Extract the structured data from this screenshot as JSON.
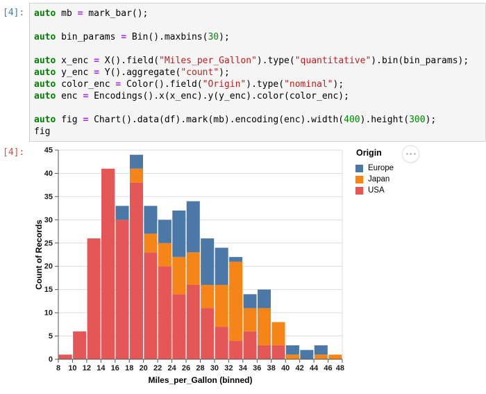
{
  "notebook": {
    "input_prompt": "[4]:",
    "output_prompt": "[4]:",
    "code_lines": [
      [
        {
          "t": "kw",
          "s": "auto"
        },
        {
          "t": "plain",
          "s": " mb "
        },
        {
          "t": "op",
          "s": "="
        },
        {
          "t": "plain",
          "s": " mark_bar();"
        }
      ],
      [],
      [
        {
          "t": "kw",
          "s": "auto"
        },
        {
          "t": "plain",
          "s": " bin_params "
        },
        {
          "t": "op",
          "s": "="
        },
        {
          "t": "plain",
          "s": " Bin().maxbins("
        },
        {
          "t": "num",
          "s": "30"
        },
        {
          "t": "plain",
          "s": ");"
        }
      ],
      [],
      [
        {
          "t": "kw",
          "s": "auto"
        },
        {
          "t": "plain",
          "s": " x_enc "
        },
        {
          "t": "op",
          "s": "="
        },
        {
          "t": "plain",
          "s": " X().field("
        },
        {
          "t": "str",
          "s": "\"Miles_per_Gallon\""
        },
        {
          "t": "plain",
          "s": ").type("
        },
        {
          "t": "str",
          "s": "\"quantitative\""
        },
        {
          "t": "plain",
          "s": ").bin(bin_params);"
        }
      ],
      [
        {
          "t": "kw",
          "s": "auto"
        },
        {
          "t": "plain",
          "s": " y_enc "
        },
        {
          "t": "op",
          "s": "="
        },
        {
          "t": "plain",
          "s": " Y().aggregate("
        },
        {
          "t": "str",
          "s": "\"count\""
        },
        {
          "t": "plain",
          "s": ");"
        }
      ],
      [
        {
          "t": "kw",
          "s": "auto"
        },
        {
          "t": "plain",
          "s": " color_enc "
        },
        {
          "t": "op",
          "s": "="
        },
        {
          "t": "plain",
          "s": " Color().field("
        },
        {
          "t": "str",
          "s": "\"Origin\""
        },
        {
          "t": "plain",
          "s": ").type("
        },
        {
          "t": "str",
          "s": "\"nominal\""
        },
        {
          "t": "plain",
          "s": ");"
        }
      ],
      [
        {
          "t": "kw",
          "s": "auto"
        },
        {
          "t": "plain",
          "s": " enc "
        },
        {
          "t": "op",
          "s": "="
        },
        {
          "t": "plain",
          "s": " Encodings().x(x_enc).y(y_enc).color(color_enc);"
        }
      ],
      [],
      [
        {
          "t": "kw",
          "s": "auto"
        },
        {
          "t": "plain",
          "s": " fig "
        },
        {
          "t": "op",
          "s": "="
        },
        {
          "t": "plain",
          "s": " Chart().data(df).mark(mb).encoding(enc).width("
        },
        {
          "t": "num",
          "s": "400"
        },
        {
          "t": "plain",
          "s": ").height("
        },
        {
          "t": "num",
          "s": "300"
        },
        {
          "t": "plain",
          "s": ");"
        }
      ],
      [
        {
          "t": "plain",
          "s": "fig"
        }
      ]
    ]
  },
  "chart_data": {
    "type": "bar",
    "stacked": true,
    "title": "",
    "xlabel": "Miles_per_Gallon (binned)",
    "ylabel": "Count of Records",
    "xlim": [
      8,
      48
    ],
    "ylim": [
      0,
      45
    ],
    "bin_size": 2,
    "bin_edges": [
      8,
      10,
      12,
      14,
      16,
      18,
      20,
      22,
      24,
      26,
      28,
      30,
      32,
      34,
      36,
      38,
      40,
      42,
      44,
      46,
      48
    ],
    "x_ticks": [
      8,
      10,
      12,
      14,
      16,
      18,
      20,
      22,
      24,
      26,
      28,
      30,
      32,
      34,
      36,
      38,
      40,
      42,
      44,
      46,
      48
    ],
    "y_ticks": [
      0,
      5,
      10,
      15,
      20,
      25,
      30,
      35,
      40,
      45
    ],
    "grid": true,
    "series": [
      {
        "name": "USA",
        "color": "#e45756",
        "values": [
          1,
          6,
          26,
          41,
          30,
          38,
          23,
          20,
          14,
          16,
          11,
          7,
          4,
          6,
          3,
          3,
          0,
          0,
          0,
          0
        ]
      },
      {
        "name": "Japan",
        "color": "#f58518",
        "values": [
          0,
          0,
          0,
          0,
          0,
          3,
          4,
          5,
          8,
          7,
          5,
          9,
          17,
          5,
          8,
          5,
          1,
          0,
          1,
          1
        ]
      },
      {
        "name": "Europe",
        "color": "#4c78a8",
        "values": [
          0,
          0,
          0,
          0,
          3,
          3,
          6,
          5,
          10,
          11,
          10,
          8,
          1,
          3,
          4,
          0,
          2,
          2,
          2,
          0
        ]
      }
    ],
    "bar_totals": [
      1,
      6,
      26,
      41,
      33,
      44,
      33,
      30,
      32,
      34,
      26,
      24,
      22,
      14,
      15,
      8,
      3,
      2,
      3,
      1
    ],
    "legend": {
      "title": "Origin",
      "position": "right",
      "entries": [
        {
          "label": "Europe",
          "color": "#4c78a8"
        },
        {
          "label": "Japan",
          "color": "#f58518"
        },
        {
          "label": "USA",
          "color": "#e45756"
        }
      ]
    },
    "colors": {
      "grid": "#dddddd",
      "axis": "#555555",
      "label": "#1a1a1a",
      "view_border": "#dddddd"
    }
  },
  "actions_menu": {
    "icon": "ellipsis"
  }
}
